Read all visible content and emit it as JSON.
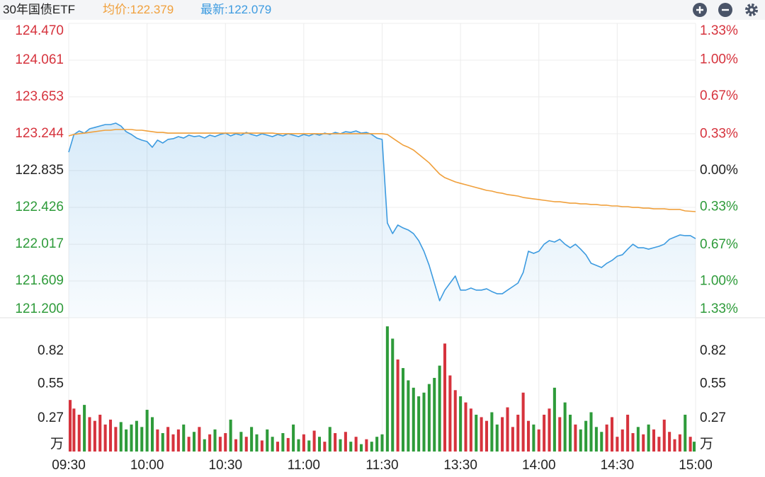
{
  "header": {
    "title": "30年国债ETF",
    "avg_label": "均价:",
    "avg": 122.379,
    "last_label": "最新:",
    "last": 122.079
  },
  "chart_data": [
    {
      "type": "line",
      "x": [
        0,
        2,
        4,
        6,
        8,
        10,
        12,
        14,
        16,
        18,
        20,
        22,
        24,
        26,
        28,
        30,
        32,
        34,
        36,
        38,
        40,
        42,
        44,
        46,
        48,
        50,
        52,
        54,
        56,
        58,
        60,
        62,
        64,
        66,
        68,
        70,
        72,
        74,
        76,
        78,
        80,
        82,
        84,
        86,
        88,
        90,
        92,
        94,
        96,
        98,
        100,
        102,
        104,
        106,
        108,
        110,
        112,
        114,
        116,
        118,
        120,
        122,
        124,
        126,
        128,
        130,
        132,
        134,
        136,
        138,
        140,
        142,
        144,
        146,
        148,
        150,
        152,
        154,
        156,
        158,
        160,
        162,
        164,
        166,
        168,
        170,
        172,
        174,
        176,
        178,
        180,
        182,
        184,
        186,
        188,
        190,
        192,
        194,
        196,
        198,
        200,
        202,
        204,
        206,
        208,
        210,
        212,
        214,
        216,
        218,
        220,
        222,
        224,
        226,
        228,
        230,
        232,
        234,
        236,
        238,
        240
      ],
      "series": [
        {
          "name": "最新",
          "color": "#3d9be0",
          "fill": true,
          "values": [
            123.039,
            123.236,
            123.275,
            123.251,
            123.299,
            123.314,
            123.33,
            123.346,
            123.346,
            123.362,
            123.33,
            123.267,
            123.236,
            123.196,
            123.173,
            123.157,
            123.094,
            123.173,
            123.141,
            123.181,
            123.189,
            123.212,
            123.196,
            123.228,
            123.212,
            123.22,
            123.196,
            123.228,
            123.212,
            123.236,
            123.251,
            123.22,
            123.244,
            123.228,
            123.259,
            123.236,
            123.22,
            123.244,
            123.228,
            123.212,
            123.236,
            123.22,
            123.244,
            123.228,
            123.212,
            123.236,
            123.22,
            123.244,
            123.228,
            123.251,
            123.236,
            123.259,
            123.244,
            123.267,
            123.259,
            123.275,
            123.251,
            123.259,
            123.236,
            123.196,
            123.181,
            122.253,
            122.135,
            122.23,
            122.198,
            122.175,
            122.135,
            122.057,
            121.939,
            121.782,
            121.585,
            121.389,
            121.507,
            121.585,
            121.664,
            121.507,
            121.507,
            121.53,
            121.507,
            121.507,
            121.522,
            121.491,
            121.467,
            121.467,
            121.507,
            121.546,
            121.585,
            121.703,
            121.939,
            121.915,
            121.939,
            122.017,
            122.057,
            122.041,
            122.072,
            122.017,
            121.978,
            122.017,
            121.962,
            121.9,
            121.805,
            121.782,
            121.758,
            121.805,
            121.837,
            121.884,
            121.9,
            121.962,
            122.017,
            121.978,
            121.978,
            121.962,
            121.978,
            121.994,
            122.017,
            122.072,
            122.096,
            122.12,
            122.112,
            122.112,
            122.079
          ]
        },
        {
          "name": "均价",
          "color": "#f0a03c",
          "fill": false,
          "values": [
            123.22,
            123.236,
            123.244,
            123.251,
            123.259,
            123.267,
            123.275,
            123.283,
            123.283,
            123.291,
            123.291,
            123.291,
            123.291,
            123.283,
            123.283,
            123.275,
            123.267,
            123.259,
            123.259,
            123.251,
            123.251,
            123.251,
            123.251,
            123.251,
            123.251,
            123.251,
            123.251,
            123.251,
            123.251,
            123.251,
            123.251,
            123.251,
            123.251,
            123.251,
            123.251,
            123.251,
            123.251,
            123.251,
            123.251,
            123.251,
            123.244,
            123.244,
            123.244,
            123.244,
            123.244,
            123.244,
            123.244,
            123.244,
            123.244,
            123.244,
            123.244,
            123.244,
            123.244,
            123.244,
            123.244,
            123.244,
            123.244,
            123.244,
            123.244,
            123.244,
            123.244,
            123.236,
            123.196,
            123.157,
            123.118,
            123.094,
            123.063,
            123.016,
            122.969,
            122.921,
            122.858,
            122.796,
            122.756,
            122.733,
            122.709,
            122.693,
            122.678,
            122.662,
            122.646,
            122.631,
            122.615,
            122.607,
            122.591,
            122.583,
            122.568,
            122.56,
            122.552,
            122.536,
            122.528,
            122.52,
            122.513,
            122.505,
            122.497,
            122.489,
            122.489,
            122.481,
            122.473,
            122.473,
            122.465,
            122.465,
            122.458,
            122.458,
            122.45,
            122.45,
            122.442,
            122.442,
            122.434,
            122.434,
            122.426,
            122.426,
            122.418,
            122.418,
            122.41,
            122.41,
            122.41,
            122.403,
            122.403,
            122.403,
            122.387,
            122.383,
            122.379
          ]
        }
      ],
      "xlim": [
        0,
        240
      ],
      "xticks": [
        {
          "value": 0,
          "label": "09:30"
        },
        {
          "value": 30,
          "label": "10:00"
        },
        {
          "value": 60,
          "label": "10:30"
        },
        {
          "value": 90,
          "label": "11:00"
        },
        {
          "value": 120,
          "label": "11:30"
        },
        {
          "value": 150,
          "label": "13:30"
        },
        {
          "value": 180,
          "label": "14:00"
        },
        {
          "value": 210,
          "label": "14:30"
        },
        {
          "value": 240,
          "label": "15:00"
        }
      ],
      "ylim": [
        121.2,
        124.47
      ],
      "yticks": [
        {
          "value": 121.2,
          "label": "121.200"
        },
        121.609,
        122.017,
        122.426,
        122.835,
        123.244,
        123.653,
        124.061,
        {
          "value": 124.47,
          "label": "124.470"
        }
      ],
      "y2lim": [
        -1.33,
        1.33
      ],
      "y2ticks": [
        {
          "value": -1.33,
          "label": "1.33%"
        },
        {
          "value": -1.0,
          "label": "1.00%"
        },
        {
          "value": -0.67,
          "label": "0.67%"
        },
        {
          "value": -0.33,
          "label": "0.33%"
        },
        {
          "value": 0,
          "label": "0.00%"
        },
        {
          "value": 0.33,
          "label": "0.33%"
        },
        {
          "value": 0.67,
          "label": "0.67%"
        },
        {
          "value": 1.0,
          "label": "1.00%"
        },
        {
          "value": 1.33,
          "label": "1.33%"
        }
      ],
      "up_color": "#d6333d",
      "down_color": "#2e9b3a",
      "neutral_color": "#222222",
      "grid": true
    },
    {
      "type": "bar",
      "x": [
        0,
        2,
        4,
        6,
        8,
        10,
        12,
        14,
        16,
        18,
        20,
        22,
        24,
        26,
        28,
        30,
        32,
        34,
        36,
        38,
        40,
        42,
        44,
        46,
        48,
        50,
        52,
        54,
        56,
        58,
        60,
        62,
        64,
        66,
        68,
        70,
        72,
        74,
        76,
        78,
        80,
        82,
        84,
        86,
        88,
        90,
        92,
        94,
        96,
        98,
        100,
        102,
        104,
        106,
        108,
        110,
        112,
        114,
        116,
        118,
        120,
        122,
        124,
        126,
        128,
        130,
        132,
        134,
        136,
        138,
        140,
        142,
        144,
        146,
        148,
        150,
        152,
        154,
        156,
        158,
        160,
        162,
        164,
        166,
        168,
        170,
        172,
        174,
        176,
        178,
        180,
        182,
        184,
        186,
        188,
        190,
        192,
        194,
        196,
        198,
        200,
        202,
        204,
        206,
        208,
        210,
        212,
        214,
        216,
        218,
        220,
        222,
        224,
        226,
        228,
        230,
        232,
        234,
        236,
        238,
        240
      ],
      "values": [
        0.42,
        0.35,
        0.3,
        0.38,
        0.28,
        0.25,
        0.3,
        0.22,
        0.26,
        0.2,
        0.24,
        0.18,
        0.22,
        0.25,
        0.2,
        0.34,
        0.28,
        0.18,
        0.15,
        0.2,
        0.14,
        0.18,
        0.22,
        0.12,
        0.16,
        0.2,
        0.1,
        0.14,
        0.18,
        0.12,
        0.15,
        0.26,
        0.1,
        0.16,
        0.12,
        0.2,
        0.14,
        0.09,
        0.18,
        0.12,
        0.08,
        0.15,
        0.11,
        0.22,
        0.1,
        0.14,
        0.09,
        0.17,
        0.12,
        0.08,
        0.2,
        0.15,
        0.1,
        0.16,
        0.08,
        0.12,
        0.06,
        0.1,
        0.08,
        0.12,
        0.14,
        1.02,
        0.92,
        0.75,
        0.68,
        0.58,
        0.52,
        0.45,
        0.48,
        0.55,
        0.6,
        0.7,
        0.88,
        0.62,
        0.5,
        0.45,
        0.4,
        0.35,
        0.3,
        0.28,
        0.25,
        0.32,
        0.22,
        0.28,
        0.36,
        0.2,
        0.3,
        0.48,
        0.25,
        0.22,
        0.18,
        0.3,
        0.35,
        0.52,
        0.28,
        0.4,
        0.3,
        0.22,
        0.18,
        0.25,
        0.32,
        0.2,
        0.16,
        0.22,
        0.28,
        0.12,
        0.18,
        0.3,
        0.15,
        0.2,
        0.14,
        0.22,
        0.18,
        0.12,
        0.26,
        0.16,
        0.1,
        0.14,
        0.3,
        0.12,
        0.08
      ],
      "xlim": [
        0,
        240
      ],
      "ylim": [
        0,
        1.09
      ],
      "yticks": [
        0.27,
        0.55,
        0.82
      ],
      "unit": "万",
      "up_color": "#d6333d",
      "down_color": "#2e9b3a"
    }
  ]
}
